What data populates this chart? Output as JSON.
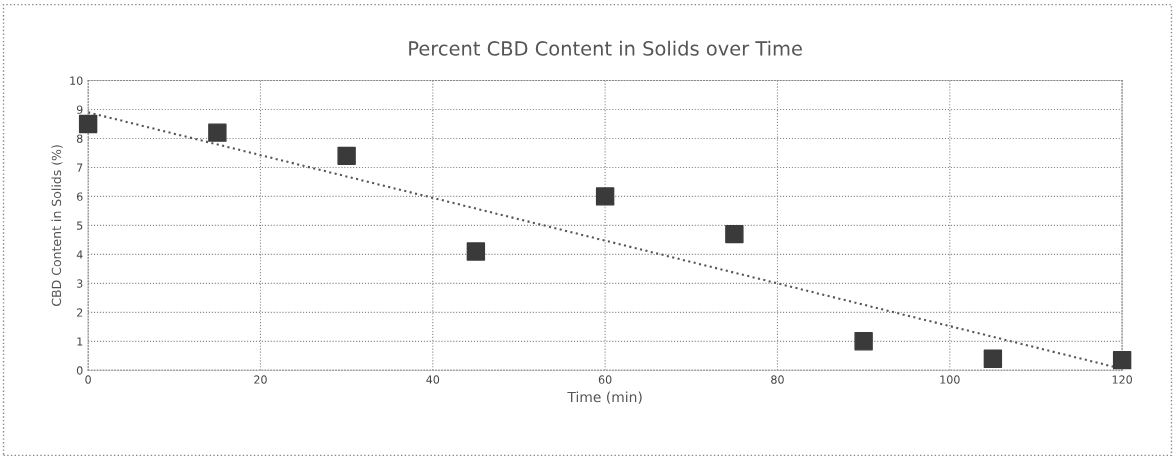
{
  "chart_data": {
    "type": "scatter",
    "title": "Percent CBD Content in Solids over Time",
    "xlabel": "Time (min)",
    "ylabel": "CBD Content in Solids (%)",
    "xlim": [
      0,
      120
    ],
    "xticks": [
      0,
      20,
      40,
      60,
      80,
      100,
      120
    ],
    "ylim": [
      0,
      10
    ],
    "yticks": [
      0,
      1,
      2,
      3,
      4,
      5,
      6,
      7,
      8,
      9,
      10
    ],
    "grid": true,
    "marker": "square",
    "series": [
      {
        "color": "#3a3a3a",
        "x": [
          0,
          15,
          30,
          45,
          60,
          75,
          90,
          105,
          120
        ],
        "values": [
          8.5,
          8.2,
          7.4,
          4.1,
          6.0,
          4.7,
          1.0,
          0.4,
          0.35
        ]
      },
      {
        "type": "line",
        "color": "#555555",
        "line_style": "dotted",
        "marker": "none",
        "x": [
          0,
          120
        ],
        "values": [
          8.9,
          0.05
        ]
      }
    ]
  }
}
